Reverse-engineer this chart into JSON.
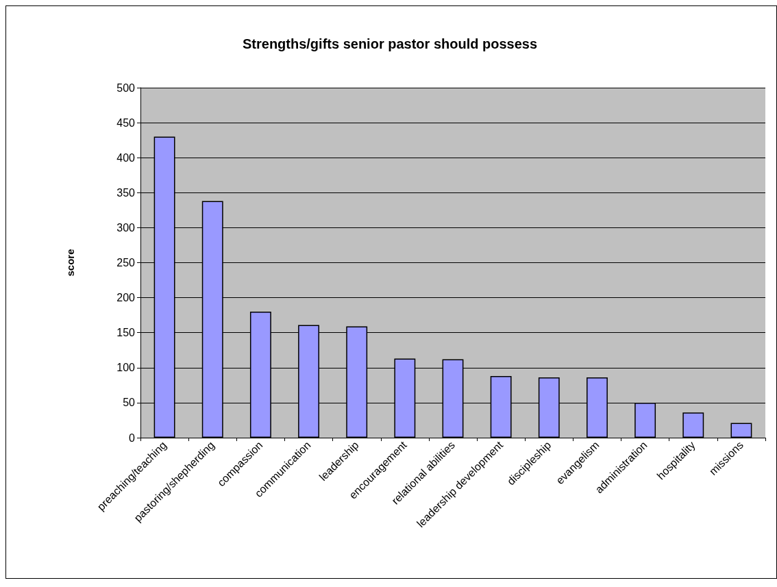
{
  "chart_data": {
    "type": "bar",
    "title": "Strengths/gifts senior pastor should possess",
    "ylabel": "score",
    "categories": [
      "preaching/teaching",
      "pastoring/shepherding",
      "compassion",
      "communication",
      "leadership",
      "encouragement",
      "relational abilities",
      "leadership development",
      "discipleship",
      "evangelism",
      "administration",
      "hospitality",
      "missions"
    ],
    "values": [
      430,
      338,
      180,
      161,
      159,
      113,
      112,
      88,
      86,
      86,
      50,
      36,
      21
    ],
    "color": "#9999ff",
    "ylim": [
      0,
      500
    ],
    "yticks": [
      0,
      50,
      100,
      150,
      200,
      250,
      300,
      350,
      400,
      450,
      500
    ],
    "grid": "y"
  }
}
